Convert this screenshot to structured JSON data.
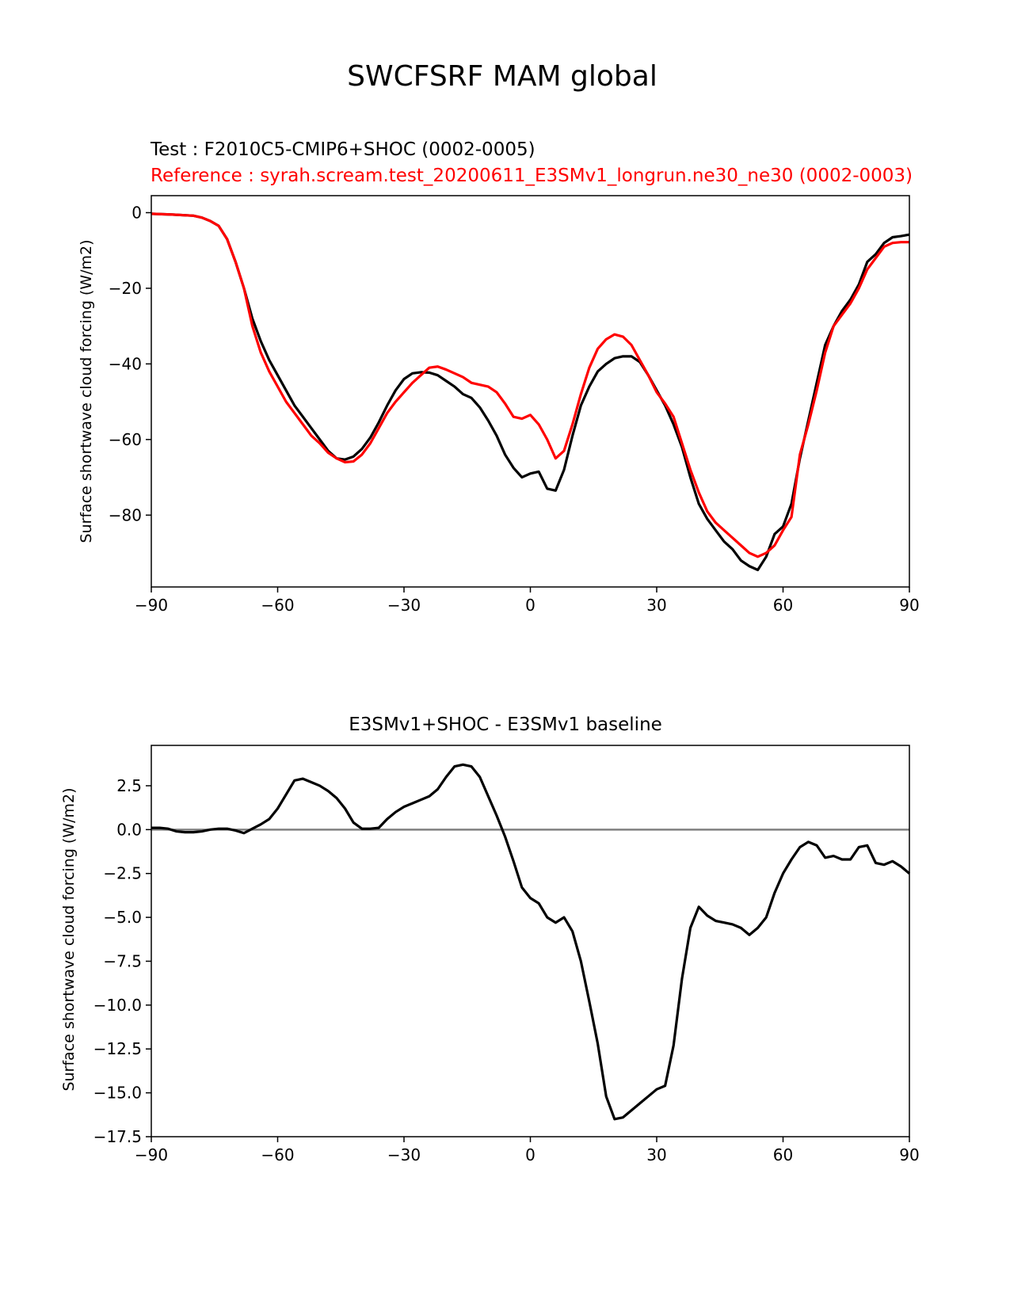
{
  "figure": {
    "suptitle": "SWCFSRF MAM global",
    "colors": {
      "test": "#000000",
      "reference": "#ff0000",
      "diff": "#000000",
      "zero_line": "#808080"
    }
  },
  "chart_data": [
    {
      "type": "line",
      "title_test": "Test : F2010C5-CMIP6+SHOC (0002-0005)",
      "title_reference": "Reference : syrah.scream.test_20200611_E3SMv1_longrun.ne30_ne30 (0002-0003)",
      "xlabel": "",
      "ylabel": "Surface shortwave cloud forcing (W/m2)",
      "xlim": [
        -90,
        90
      ],
      "ylim": [
        -99,
        4.5
      ],
      "xticks": [
        -90,
        -60,
        -30,
        0,
        30,
        60,
        90
      ],
      "yticks": [
        0,
        -20,
        -40,
        -60,
        -80
      ],
      "xtick_labels": [
        "−90",
        "−60",
        "−30",
        "0",
        "30",
        "60",
        "90"
      ],
      "ytick_labels": [
        "0",
        "−20",
        "−40",
        "−60",
        "−80"
      ],
      "grid": false,
      "series": [
        {
          "name": "Test",
          "color": "#000000",
          "points": [
            [
              -90,
              -0.3
            ],
            [
              -85,
              -0.5
            ],
            [
              -80,
              -0.8
            ],
            [
              -78,
              -1.3
            ],
            [
              -76,
              -2.2
            ],
            [
              -74,
              -3.5
            ],
            [
              -72,
              -7
            ],
            [
              -70,
              -13
            ],
            [
              -68,
              -20
            ],
            [
              -66,
              -28
            ],
            [
              -64,
              -34
            ],
            [
              -62,
              -39
            ],
            [
              -60,
              -43
            ],
            [
              -58,
              -47
            ],
            [
              -56,
              -51
            ],
            [
              -54,
              -54
            ],
            [
              -52,
              -57
            ],
            [
              -50,
              -60
            ],
            [
              -48,
              -63
            ],
            [
              -46,
              -65
            ],
            [
              -44,
              -65.3
            ],
            [
              -42,
              -64.5
            ],
            [
              -40,
              -62.5
            ],
            [
              -38,
              -59.5
            ],
            [
              -36,
              -55.5
            ],
            [
              -34,
              -51
            ],
            [
              -32,
              -47
            ],
            [
              -30,
              -44
            ],
            [
              -28,
              -42.5
            ],
            [
              -26,
              -42.2
            ],
            [
              -24,
              -42.3
            ],
            [
              -22,
              -43
            ],
            [
              -20,
              -44.5
            ],
            [
              -18,
              -46
            ],
            [
              -16,
              -48
            ],
            [
              -14,
              -49
            ],
            [
              -12,
              -51.5
            ],
            [
              -10,
              -55
            ],
            [
              -8,
              -59
            ],
            [
              -6,
              -64
            ],
            [
              -4,
              -67.5
            ],
            [
              -2,
              -70
            ],
            [
              0,
              -69
            ],
            [
              2,
              -68.5
            ],
            [
              4,
              -73
            ],
            [
              6,
              -73.5
            ],
            [
              8,
              -68
            ],
            [
              10,
              -59
            ],
            [
              12,
              -51
            ],
            [
              14,
              -46
            ],
            [
              16,
              -42
            ],
            [
              18,
              -40
            ],
            [
              20,
              -38.5
            ],
            [
              22,
              -38
            ],
            [
              24,
              -38
            ],
            [
              26,
              -39.5
            ],
            [
              28,
              -43
            ],
            [
              30,
              -47
            ],
            [
              32,
              -51
            ],
            [
              34,
              -56
            ],
            [
              36,
              -62
            ],
            [
              38,
              -70
            ],
            [
              40,
              -77
            ],
            [
              42,
              -81
            ],
            [
              44,
              -84
            ],
            [
              46,
              -87
            ],
            [
              48,
              -89
            ],
            [
              50,
              -92
            ],
            [
              52,
              -93.5
            ],
            [
              54,
              -94.5
            ],
            [
              56,
              -91
            ],
            [
              58,
              -85
            ],
            [
              60,
              -83
            ],
            [
              62,
              -77
            ],
            [
              64,
              -65
            ],
            [
              66,
              -55
            ],
            [
              68,
              -45
            ],
            [
              70,
              -35
            ],
            [
              72,
              -30
            ],
            [
              74,
              -26
            ],
            [
              76,
              -23
            ],
            [
              78,
              -19
            ],
            [
              80,
              -13
            ],
            [
              82,
              -11
            ],
            [
              84,
              -8
            ],
            [
              86,
              -6.5
            ],
            [
              88,
              -6.2
            ],
            [
              90,
              -5.8
            ]
          ]
        },
        {
          "name": "Reference",
          "color": "#ff0000",
          "points": [
            [
              -90,
              -0.3
            ],
            [
              -85,
              -0.5
            ],
            [
              -80,
              -0.8
            ],
            [
              -78,
              -1.3
            ],
            [
              -76,
              -2.2
            ],
            [
              -74,
              -3.5
            ],
            [
              -72,
              -7
            ],
            [
              -70,
              -13
            ],
            [
              -68,
              -20
            ],
            [
              -66,
              -30
            ],
            [
              -64,
              -37
            ],
            [
              -62,
              -42
            ],
            [
              -60,
              -46
            ],
            [
              -58,
              -50
            ],
            [
              -56,
              -53
            ],
            [
              -54,
              -56
            ],
            [
              -52,
              -59
            ],
            [
              -50,
              -61
            ],
            [
              -48,
              -63.5
            ],
            [
              -46,
              -65
            ],
            [
              -44,
              -66
            ],
            [
              -42,
              -65.8
            ],
            [
              -40,
              -64
            ],
            [
              -38,
              -61
            ],
            [
              -36,
              -57
            ],
            [
              -34,
              -53
            ],
            [
              -32,
              -50
            ],
            [
              -30,
              -47.5
            ],
            [
              -28,
              -45
            ],
            [
              -26,
              -43
            ],
            [
              -24,
              -41
            ],
            [
              -22,
              -40.7
            ],
            [
              -20,
              -41.5
            ],
            [
              -18,
              -42.5
            ],
            [
              -16,
              -43.5
            ],
            [
              -14,
              -45
            ],
            [
              -12,
              -45.5
            ],
            [
              -10,
              -46
            ],
            [
              -8,
              -47.5
            ],
            [
              -6,
              -50.5
            ],
            [
              -4,
              -54
            ],
            [
              -2,
              -54.5
            ],
            [
              0,
              -53.5
            ],
            [
              2,
              -56
            ],
            [
              4,
              -60
            ],
            [
              6,
              -65
            ],
            [
              8,
              -63
            ],
            [
              10,
              -56
            ],
            [
              12,
              -48
            ],
            [
              14,
              -41
            ],
            [
              16,
              -36
            ],
            [
              18,
              -33.5
            ],
            [
              20,
              -32.2
            ],
            [
              22,
              -32.8
            ],
            [
              24,
              -35
            ],
            [
              26,
              -39
            ],
            [
              28,
              -43
            ],
            [
              30,
              -47.5
            ],
            [
              32,
              -50.5
            ],
            [
              34,
              -54
            ],
            [
              36,
              -61
            ],
            [
              38,
              -68
            ],
            [
              40,
              -74
            ],
            [
              42,
              -79
            ],
            [
              44,
              -82
            ],
            [
              46,
              -84
            ],
            [
              48,
              -86
            ],
            [
              50,
              -88
            ],
            [
              52,
              -90
            ],
            [
              54,
              -91
            ],
            [
              56,
              -90
            ],
            [
              58,
              -88
            ],
            [
              60,
              -84
            ],
            [
              62,
              -80.5
            ],
            [
              64,
              -64
            ],
            [
              66,
              -56
            ],
            [
              68,
              -47
            ],
            [
              70,
              -37
            ],
            [
              72,
              -30
            ],
            [
              74,
              -27
            ],
            [
              76,
              -24
            ],
            [
              78,
              -20
            ],
            [
              80,
              -15
            ],
            [
              82,
              -12
            ],
            [
              84,
              -9
            ],
            [
              86,
              -8
            ],
            [
              88,
              -7.8
            ],
            [
              90,
              -7.8
            ]
          ]
        }
      ]
    },
    {
      "type": "line",
      "title": "E3SMv1+SHOC - E3SMv1 baseline",
      "xlabel": "",
      "ylabel": "Surface shortwave cloud forcing (W/m2)",
      "xlim": [
        -90,
        90
      ],
      "ylim": [
        -17.5,
        4.8
      ],
      "xticks": [
        -90,
        -60,
        -30,
        0,
        30,
        60,
        90
      ],
      "yticks": [
        2.5,
        0.0,
        -2.5,
        -5.0,
        -7.5,
        -10.0,
        -12.5,
        -15.0,
        -17.5
      ],
      "xtick_labels": [
        "−90",
        "−60",
        "−30",
        "0",
        "30",
        "60",
        "90"
      ],
      "ytick_labels": [
        "2.5",
        "0.0",
        "−2.5",
        "−5.0",
        "−7.5",
        "−10.0",
        "−12.5",
        "−15.0",
        "−17.5"
      ],
      "grid": false,
      "reference_line": 0,
      "series": [
        {
          "name": "difference",
          "color": "#000000",
          "points": [
            [
              -90,
              0.1
            ],
            [
              -88,
              0.1
            ],
            [
              -86,
              0.05
            ],
            [
              -84,
              -0.1
            ],
            [
              -82,
              -0.15
            ],
            [
              -80,
              -0.15
            ],
            [
              -78,
              -0.1
            ],
            [
              -76,
              0
            ],
            [
              -74,
              0.05
            ],
            [
              -72,
              0.05
            ],
            [
              -70,
              -0.05
            ],
            [
              -68,
              -0.2
            ],
            [
              -66,
              0.05
            ],
            [
              -64,
              0.3
            ],
            [
              -62,
              0.6
            ],
            [
              -60,
              1.2
            ],
            [
              -58,
              2.0
            ],
            [
              -56,
              2.8
            ],
            [
              -54,
              2.9
            ],
            [
              -52,
              2.7
            ],
            [
              -50,
              2.5
            ],
            [
              -48,
              2.2
            ],
            [
              -46,
              1.8
            ],
            [
              -44,
              1.2
            ],
            [
              -42,
              0.4
            ],
            [
              -40,
              0.05
            ],
            [
              -38,
              0.05
            ],
            [
              -36,
              0.1
            ],
            [
              -34,
              0.6
            ],
            [
              -32,
              1.0
            ],
            [
              -30,
              1.3
            ],
            [
              -28,
              1.5
            ],
            [
              -26,
              1.7
            ],
            [
              -24,
              1.9
            ],
            [
              -22,
              2.3
            ],
            [
              -20,
              3.0
            ],
            [
              -18,
              3.6
            ],
            [
              -16,
              3.7
            ],
            [
              -14,
              3.6
            ],
            [
              -12,
              3.0
            ],
            [
              -10,
              1.9
            ],
            [
              -8,
              0.8
            ],
            [
              -6,
              -0.4
            ],
            [
              -4,
              -1.8
            ],
            [
              -2,
              -3.3
            ],
            [
              0,
              -3.9
            ],
            [
              2,
              -4.2
            ],
            [
              4,
              -5.0
            ],
            [
              6,
              -5.3
            ],
            [
              8,
              -5.0
            ],
            [
              10,
              -5.8
            ],
            [
              12,
              -7.5
            ],
            [
              14,
              -9.8
            ],
            [
              16,
              -12.2
            ],
            [
              18,
              -15.2
            ],
            [
              20,
              -16.5
            ],
            [
              22,
              -16.4
            ],
            [
              24,
              -16.0
            ],
            [
              26,
              -15.6
            ],
            [
              28,
              -15.2
            ],
            [
              30,
              -14.8
            ],
            [
              32,
              -14.6
            ],
            [
              34,
              -12.3
            ],
            [
              36,
              -8.5
            ],
            [
              38,
              -5.6
            ],
            [
              40,
              -4.4
            ],
            [
              42,
              -4.9
            ],
            [
              44,
              -5.2
            ],
            [
              46,
              -5.3
            ],
            [
              48,
              -5.4
            ],
            [
              50,
              -5.6
            ],
            [
              52,
              -6.0
            ],
            [
              54,
              -5.6
            ],
            [
              56,
              -5.0
            ],
            [
              58,
              -3.6
            ],
            [
              60,
              -2.5
            ],
            [
              62,
              -1.7
            ],
            [
              64,
              -1.0
            ],
            [
              66,
              -0.7
            ],
            [
              68,
              -0.9
            ],
            [
              70,
              -1.6
            ],
            [
              72,
              -1.5
            ],
            [
              74,
              -1.7
            ],
            [
              76,
              -1.7
            ],
            [
              78,
              -1.0
            ],
            [
              80,
              -0.9
            ],
            [
              82,
              -1.9
            ],
            [
              84,
              -2.0
            ],
            [
              86,
              -1.8
            ],
            [
              88,
              -2.1
            ],
            [
              90,
              -2.5
            ]
          ]
        }
      ]
    }
  ]
}
